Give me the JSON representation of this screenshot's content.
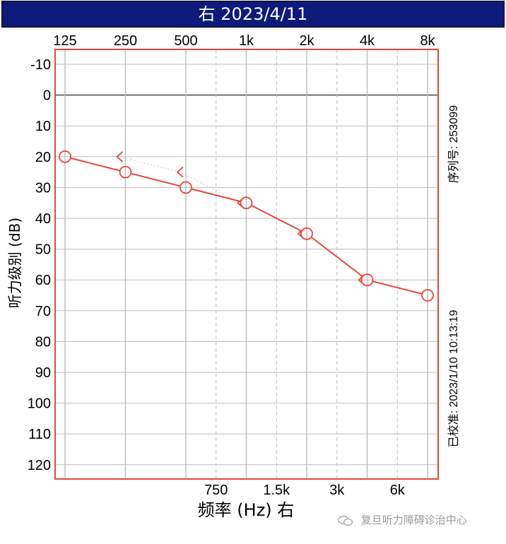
{
  "header": {
    "title": "右 2023/4/11",
    "background": "#0d1a7a"
  },
  "colors": {
    "plot_border": "#e8463a",
    "series": "#e8463a",
    "grid": "#bbbbbb",
    "zero_line": "#555555",
    "dotted": "#cccccc"
  },
  "chart_data": {
    "type": "line",
    "title": "右 2023/4/11",
    "xlabel": "频率 (Hz) 右",
    "ylabel": "听力级别 (dB)",
    "x_scale": "log2",
    "x_top_ticks": [
      "125",
      "250",
      "500",
      "1k",
      "2k",
      "4k",
      "8k"
    ],
    "x_bottom_ticks": [
      "750",
      "1.5k",
      "3k",
      "6k"
    ],
    "ylim": [
      -10,
      120
    ],
    "y_ticks": [
      -10,
      0,
      10,
      20,
      30,
      40,
      50,
      60,
      70,
      80,
      90,
      100,
      110,
      120
    ],
    "y_inverted": true,
    "series": [
      {
        "marker": "circle",
        "line": "solid",
        "x": [
          125,
          250,
          500,
          1000,
          2000,
          4000,
          8000
        ],
        "y": [
          20,
          25,
          30,
          35,
          45,
          60,
          65
        ]
      },
      {
        "marker": "<",
        "line": "dotted",
        "x": [
          250,
          500,
          1000,
          2000,
          4000
        ],
        "y": [
          20,
          25,
          35,
          45,
          60
        ]
      }
    ]
  },
  "side_labels": {
    "serial": "序列号: 253099",
    "calibrated": "已校准: 2023/1/10 10:13:19"
  },
  "watermark": {
    "text": "复旦听力障碍诊治中心",
    "icon": "wechat-icon"
  }
}
